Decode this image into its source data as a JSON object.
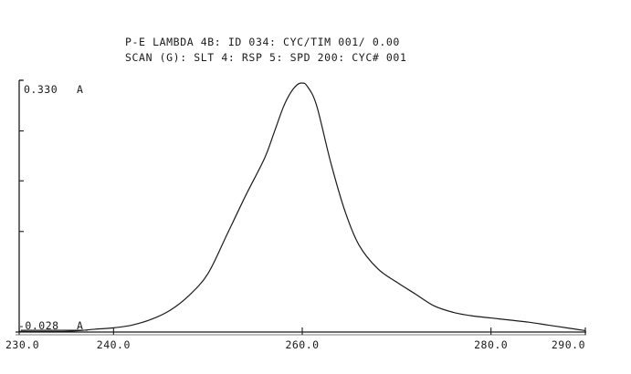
{
  "header": {
    "line1": "P-E LAMBDA 4B: ID 034: CYC/TIM 001/ 0.00",
    "line2": "SCAN (G): SLT   4: RSP 5: SPD 200: CYC# 001"
  },
  "chart_data": {
    "type": "line",
    "title": "",
    "xlabel": "",
    "ylabel": "",
    "xlim": [
      230.0,
      290.0
    ],
    "ylim": [
      -0.028,
      0.33
    ],
    "y_max_label": "0.330",
    "y_min_label": "-0.028",
    "y_unit": "A",
    "x_ticks": [
      {
        "value": 230.0,
        "label": "230.0"
      },
      {
        "value": 240.0,
        "label": "240.0"
      },
      {
        "value": 260.0,
        "label": "260.0"
      },
      {
        "value": 280.0,
        "label": "280.0"
      },
      {
        "value": 290.0,
        "label": "290.0"
      }
    ],
    "y_tick_values": [
      0.33,
      0.258,
      0.187,
      0.115
    ],
    "grid": false,
    "series": [
      {
        "color": "#1a1a1a",
        "x": [
          230.0,
          235.0,
          238.0,
          240.0,
          242.0,
          244.0,
          246.0,
          248.0,
          250.0,
          252.0,
          254.0,
          256.0,
          257.0,
          258.0,
          258.8,
          259.5,
          260.0,
          260.5,
          261.5,
          263.0,
          264.5,
          266.0,
          268.0,
          270.0,
          272.0,
          274.0,
          276.0,
          278.0,
          280.0,
          282.0,
          284.0,
          286.0,
          288.0,
          290.0
        ],
        "y": [
          -0.027,
          -0.027,
          -0.024,
          -0.022,
          -0.018,
          -0.01,
          0.003,
          0.024,
          0.055,
          0.11,
          0.166,
          0.219,
          0.255,
          0.292,
          0.313,
          0.324,
          0.326,
          0.322,
          0.295,
          0.214,
          0.145,
          0.096,
          0.062,
          0.043,
          0.026,
          0.009,
          0.0,
          -0.005,
          -0.008,
          -0.011,
          -0.014,
          -0.018,
          -0.022,
          -0.026
        ]
      }
    ]
  }
}
